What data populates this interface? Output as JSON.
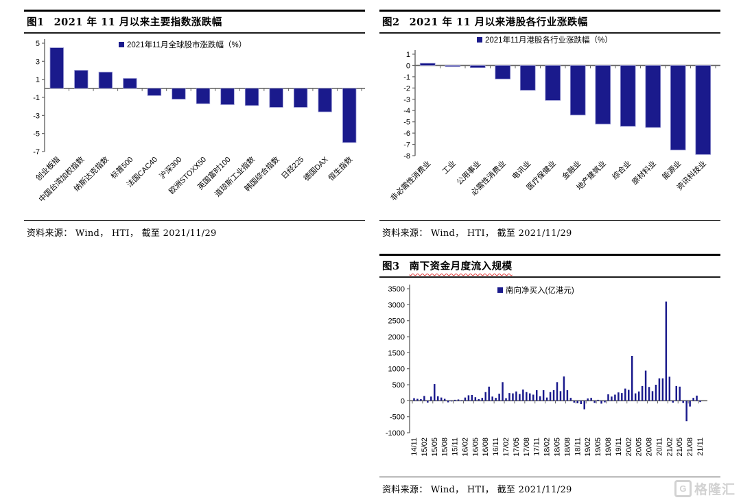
{
  "accent_color": "#1a1a8c",
  "axis_color": "#666666",
  "bar_stroke_color": "#9b9bd4",
  "watermark": {
    "icon": "G",
    "text": "格隆汇"
  },
  "panels": [
    {
      "num": "图1",
      "title": "2021 年 11 月以来主要指数涨跌幅",
      "source": "资料来源： Wind， HTI， 截至 2021/11/29"
    },
    {
      "num": "图2",
      "title": "2021 年 11 月以来港股各行业涨跌幅",
      "source": "资料来源： Wind， HTI， 截至 2021/11/29"
    },
    {
      "num": "图3",
      "title": "南下资金月度流入规模",
      "source": "资料来源： Wind， HTI， 截至 2021/11/29"
    }
  ],
  "chart_data": [
    {
      "type": "bar",
      "title": "2021 年 11 月以来主要指数涨跌幅",
      "legend": "2021年11月全球股市涨跌幅（%）",
      "categories": [
        "创业板指",
        "中国台湾加权指数",
        "纳斯达克指数",
        "标普500",
        "法国CAC40",
        "沪深300",
        "欧洲STOXX50",
        "英国富时100",
        "道琼斯工业指数",
        "韩国综合指数",
        "日经225",
        "德国DAX",
        "恒生指数"
      ],
      "values": [
        4.5,
        2.0,
        1.8,
        1.1,
        -0.8,
        -1.2,
        -1.7,
        -1.8,
        -1.9,
        -2.1,
        -2.1,
        -2.6,
        -6.0
      ],
      "ylim": [
        -7,
        5
      ],
      "yticks": [
        5,
        3,
        1,
        -1,
        -3,
        -5,
        -7
      ],
      "xlabel": "",
      "ylabel": "",
      "grid": false,
      "legend_position": "top-center"
    },
    {
      "type": "bar",
      "title": "2021 年 11 月以来港股各行业涨跌幅",
      "legend": "2021年11月港股各行业涨跌幅（%）",
      "categories": [
        "非必需性消费业",
        "工业",
        "公用事业",
        "必需性消费业",
        "电讯业",
        "医疗保健业",
        "金融业",
        "地产建筑业",
        "综合业",
        "原材料业",
        "能源业",
        "资讯科技业"
      ],
      "values": [
        0.2,
        -0.1,
        -0.2,
        -1.2,
        -2.2,
        -3.1,
        -4.4,
        -5.2,
        -5.4,
        -5.5,
        -7.5,
        -7.9
      ],
      "ylim": [
        -8,
        1
      ],
      "yticks": [
        1,
        0,
        -1,
        -2,
        -3,
        -4,
        -5,
        -6,
        -7,
        -8
      ],
      "xlabel": "",
      "ylabel": "",
      "grid": false,
      "legend_position": "top-center"
    },
    {
      "type": "bar",
      "title": "南下资金月度流入规模",
      "legend": "南向净买入(亿港元)",
      "x": [
        "14/11",
        "14/12",
        "15/01",
        "15/02",
        "15/03",
        "15/04",
        "15/05",
        "15/06",
        "15/07",
        "15/08",
        "15/09",
        "15/10",
        "15/11",
        "15/12",
        "16/01",
        "16/02",
        "16/03",
        "16/04",
        "16/05",
        "16/06",
        "16/07",
        "16/08",
        "16/09",
        "16/10",
        "16/11",
        "16/12",
        "17/01",
        "17/02",
        "17/03",
        "17/04",
        "17/05",
        "17/06",
        "17/07",
        "17/08",
        "17/09",
        "17/10",
        "17/11",
        "17/12",
        "18/01",
        "18/02",
        "18/03",
        "18/04",
        "18/05",
        "18/06",
        "18/07",
        "18/08",
        "18/09",
        "18/10",
        "18/11",
        "18/12",
        "19/01",
        "19/02",
        "19/03",
        "19/04",
        "19/05",
        "19/06",
        "19/07",
        "19/08",
        "19/09",
        "19/10",
        "19/11",
        "19/12",
        "20/01",
        "20/02",
        "20/03",
        "20/04",
        "20/05",
        "20/06",
        "20/07",
        "20/08",
        "20/09",
        "20/10",
        "20/11",
        "20/12",
        "21/01",
        "21/02",
        "21/03",
        "21/04",
        "21/05",
        "21/06",
        "21/07",
        "21/08",
        "21/09",
        "21/10",
        "21/11"
      ],
      "values": [
        80,
        60,
        50,
        150,
        -60,
        130,
        520,
        140,
        100,
        60,
        -50,
        -20,
        30,
        40,
        20,
        100,
        170,
        180,
        110,
        50,
        90,
        270,
        440,
        130,
        90,
        220,
        580,
        80,
        240,
        230,
        290,
        210,
        350,
        270,
        230,
        190,
        330,
        140,
        330,
        100,
        270,
        330,
        580,
        300,
        760,
        330,
        90,
        -60,
        -80,
        -100,
        -270,
        70,
        90,
        -70,
        30,
        -90,
        -50,
        200,
        130,
        190,
        260,
        240,
        380,
        340,
        1400,
        230,
        290,
        460,
        940,
        430,
        300,
        500,
        700,
        700,
        3100,
        750,
        -60,
        460,
        440,
        -70,
        -640,
        -180,
        90,
        160,
        -40
      ],
      "xtick_every": 3,
      "ylim": [
        -1000,
        3500
      ],
      "yticks": [
        3500,
        3000,
        2500,
        2000,
        1500,
        1000,
        500,
        0,
        -500,
        -1000
      ],
      "xlabel": "",
      "ylabel": "",
      "grid": false,
      "legend_position": "top-center"
    }
  ]
}
